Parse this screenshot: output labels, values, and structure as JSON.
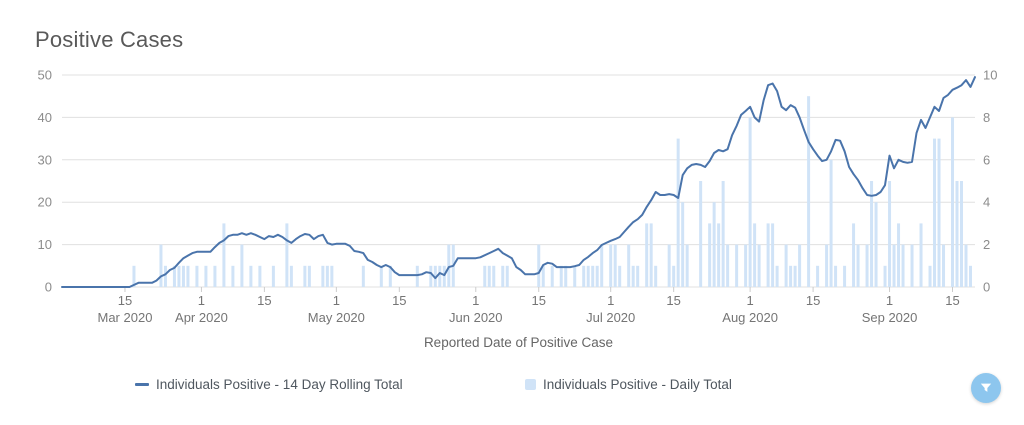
{
  "title": "Positive Cases",
  "chart_data": {
    "type": "combo",
    "title": "Positive Cases",
    "x_axis": {
      "title": "Reported Date of Positive Case",
      "day_zero": "2020-03-01",
      "day_max": 203,
      "ticks": [
        {
          "day": 14,
          "label": "15",
          "month": "Mar 2020"
        },
        {
          "day": 31,
          "label": "1",
          "month": "Apr 2020"
        },
        {
          "day": 45,
          "label": "15",
          "month": ""
        },
        {
          "day": 61,
          "label": "1",
          "month": "May 2020"
        },
        {
          "day": 75,
          "label": "15",
          "month": ""
        },
        {
          "day": 92,
          "label": "1",
          "month": "Jun 2020"
        },
        {
          "day": 106,
          "label": "15",
          "month": ""
        },
        {
          "day": 122,
          "label": "1",
          "month": "Jul 2020"
        },
        {
          "day": 136,
          "label": "15",
          "month": ""
        },
        {
          "day": 153,
          "label": "1",
          "month": "Aug 2020"
        },
        {
          "day": 167,
          "label": "15",
          "month": ""
        },
        {
          "day": 184,
          "label": "1",
          "month": "Sep 2020"
        },
        {
          "day": 198,
          "label": "15",
          "month": ""
        }
      ]
    },
    "y_left": {
      "range": [
        0,
        50
      ],
      "ticks": [
        0,
        10,
        20,
        30,
        40,
        50
      ]
    },
    "y_right": {
      "range": [
        0,
        10
      ],
      "ticks": [
        0,
        2,
        4,
        6,
        8,
        10
      ]
    },
    "grid": true,
    "legend_position": "bottom",
    "series": [
      {
        "name": "Individuals Positive - 14 Day Rolling Total",
        "type": "line",
        "axis": "left",
        "color": "#4a74ab",
        "points": [
          [
            0,
            0
          ],
          [
            15,
            0
          ],
          [
            16,
            0.5
          ],
          [
            17,
            1
          ],
          [
            20,
            1
          ],
          [
            21,
            1.5
          ],
          [
            22,
            2.5
          ],
          [
            23,
            3
          ],
          [
            24,
            4
          ],
          [
            25,
            4.5
          ],
          [
            26,
            5.7
          ],
          [
            27,
            6.8
          ],
          [
            28,
            7.4
          ],
          [
            29,
            8
          ],
          [
            30,
            8.3
          ],
          [
            33,
            8.3
          ],
          [
            34,
            9.4
          ],
          [
            35,
            10.4
          ],
          [
            36,
            11
          ],
          [
            37,
            12
          ],
          [
            38,
            12.3
          ],
          [
            39,
            12.3
          ],
          [
            40,
            12.7
          ],
          [
            41,
            12.3
          ],
          [
            42,
            12.7
          ],
          [
            43,
            12.3
          ],
          [
            44,
            11.8
          ],
          [
            45,
            11.3
          ],
          [
            46,
            12
          ],
          [
            47,
            11.8
          ],
          [
            48,
            12.3
          ],
          [
            49,
            11.8
          ],
          [
            50,
            11
          ],
          [
            51,
            10.4
          ],
          [
            52,
            11.3
          ],
          [
            53,
            12
          ],
          [
            54,
            12.5
          ],
          [
            55,
            12.3
          ],
          [
            56,
            11.3
          ],
          [
            57,
            12
          ],
          [
            58,
            12.3
          ],
          [
            59,
            10.4
          ],
          [
            60,
            10
          ],
          [
            61,
            10.2
          ],
          [
            63,
            10.2
          ],
          [
            64,
            9.7
          ],
          [
            65,
            8.5
          ],
          [
            66,
            8.3
          ],
          [
            67,
            8
          ],
          [
            68,
            6.4
          ],
          [
            69,
            5.9
          ],
          [
            70,
            5.2
          ],
          [
            71,
            4.7
          ],
          [
            72,
            5.2
          ],
          [
            73,
            4.7
          ],
          [
            74,
            3.5
          ],
          [
            75,
            2.8
          ],
          [
            79,
            2.8
          ],
          [
            80,
            3
          ],
          [
            81,
            3.5
          ],
          [
            82,
            3.3
          ],
          [
            83,
            2.1
          ],
          [
            84,
            3.3
          ],
          [
            85,
            2.8
          ],
          [
            86,
            4.7
          ],
          [
            87,
            5
          ],
          [
            88,
            6.8
          ],
          [
            92,
            6.8
          ],
          [
            93,
            7
          ],
          [
            95,
            8
          ],
          [
            96,
            8.5
          ],
          [
            97,
            9
          ],
          [
            98,
            8
          ],
          [
            99,
            7.4
          ],
          [
            100,
            6.8
          ],
          [
            101,
            4.7
          ],
          [
            102,
            4
          ],
          [
            103,
            3
          ],
          [
            105,
            3
          ],
          [
            106,
            3.3
          ],
          [
            107,
            5.2
          ],
          [
            108,
            5.7
          ],
          [
            109,
            5.5
          ],
          [
            110,
            4.7
          ],
          [
            113,
            4.7
          ],
          [
            114,
            4.9
          ],
          [
            115,
            5.2
          ],
          [
            116,
            6.4
          ],
          [
            117,
            7.1
          ],
          [
            118,
            8
          ],
          [
            119,
            8.7
          ],
          [
            120,
            9.9
          ],
          [
            121,
            10.4
          ],
          [
            122,
            10.9
          ],
          [
            123,
            11.3
          ],
          [
            124,
            11.8
          ],
          [
            125,
            13
          ],
          [
            126,
            14.2
          ],
          [
            127,
            15.3
          ],
          [
            128,
            16
          ],
          [
            129,
            17
          ],
          [
            130,
            18.9
          ],
          [
            131,
            20.5
          ],
          [
            132,
            22.4
          ],
          [
            133,
            21.7
          ],
          [
            134,
            21.7
          ],
          [
            135,
            21.9
          ],
          [
            136,
            21.7
          ],
          [
            137,
            21
          ],
          [
            138,
            26.4
          ],
          [
            139,
            28
          ],
          [
            140,
            28.8
          ],
          [
            141,
            29
          ],
          [
            142,
            28.8
          ],
          [
            143,
            28.3
          ],
          [
            144,
            29.7
          ],
          [
            145,
            31.6
          ],
          [
            146,
            32.3
          ],
          [
            147,
            32
          ],
          [
            148,
            32.5
          ],
          [
            149,
            35.8
          ],
          [
            150,
            38
          ],
          [
            151,
            40.6
          ],
          [
            152,
            41.5
          ],
          [
            153,
            42.5
          ],
          [
            154,
            40
          ],
          [
            155,
            39
          ],
          [
            156,
            44
          ],
          [
            157,
            47.6
          ],
          [
            158,
            48
          ],
          [
            159,
            46.2
          ],
          [
            160,
            42.5
          ],
          [
            161,
            41.7
          ],
          [
            162,
            42.9
          ],
          [
            163,
            42.3
          ],
          [
            164,
            40
          ],
          [
            165,
            37
          ],
          [
            166,
            34.2
          ],
          [
            167,
            32.5
          ],
          [
            168,
            31
          ],
          [
            169,
            29.7
          ],
          [
            170,
            30
          ],
          [
            171,
            32
          ],
          [
            172,
            34.7
          ],
          [
            173,
            34.5
          ],
          [
            174,
            32
          ],
          [
            175,
            28.3
          ],
          [
            176,
            26.6
          ],
          [
            177,
            25.2
          ],
          [
            178,
            23.3
          ],
          [
            179,
            21.7
          ],
          [
            180,
            21.5
          ],
          [
            181,
            21.7
          ],
          [
            182,
            22.4
          ],
          [
            183,
            24
          ],
          [
            184,
            31
          ],
          [
            185,
            28
          ],
          [
            186,
            30
          ],
          [
            187,
            29.5
          ],
          [
            188,
            29.3
          ],
          [
            189,
            29.5
          ],
          [
            190,
            36.3
          ],
          [
            191,
            39.4
          ],
          [
            192,
            37.5
          ],
          [
            193,
            40
          ],
          [
            194,
            42.5
          ],
          [
            195,
            41.5
          ],
          [
            196,
            44.6
          ],
          [
            197,
            45.3
          ],
          [
            198,
            46.5
          ],
          [
            199,
            47
          ],
          [
            200,
            47.6
          ],
          [
            201,
            48.8
          ],
          [
            202,
            47.2
          ],
          [
            203,
            49.5
          ]
        ]
      },
      {
        "name": "Individuals Positive - Daily Total",
        "type": "bar",
        "axis": "right",
        "color": "#d0e3f7",
        "points": [
          [
            16,
            1
          ],
          [
            22,
            2
          ],
          [
            23,
            1
          ],
          [
            25,
            1
          ],
          [
            26,
            1
          ],
          [
            27,
            1
          ],
          [
            28,
            1
          ],
          [
            30,
            1
          ],
          [
            32,
            1
          ],
          [
            34,
            1
          ],
          [
            36,
            3
          ],
          [
            38,
            1
          ],
          [
            40,
            2
          ],
          [
            42,
            1
          ],
          [
            44,
            1
          ],
          [
            47,
            1
          ],
          [
            50,
            3
          ],
          [
            51,
            1
          ],
          [
            54,
            1
          ],
          [
            55,
            1
          ],
          [
            58,
            1
          ],
          [
            59,
            1
          ],
          [
            60,
            1
          ],
          [
            67,
            1
          ],
          [
            71,
            1
          ],
          [
            73,
            1
          ],
          [
            79,
            1
          ],
          [
            82,
            1
          ],
          [
            83,
            1
          ],
          [
            84,
            1
          ],
          [
            85,
            1
          ],
          [
            86,
            2
          ],
          [
            87,
            2
          ],
          [
            94,
            1
          ],
          [
            95,
            1
          ],
          [
            96,
            1
          ],
          [
            98,
            1
          ],
          [
            99,
            1
          ],
          [
            106,
            2
          ],
          [
            107,
            1
          ],
          [
            109,
            1
          ],
          [
            111,
            1
          ],
          [
            112,
            1
          ],
          [
            114,
            1
          ],
          [
            116,
            1
          ],
          [
            117,
            1
          ],
          [
            118,
            1
          ],
          [
            119,
            1
          ],
          [
            120,
            2
          ],
          [
            122,
            2
          ],
          [
            123,
            2
          ],
          [
            124,
            1
          ],
          [
            126,
            2
          ],
          [
            127,
            1
          ],
          [
            128,
            1
          ],
          [
            130,
            3
          ],
          [
            131,
            3
          ],
          [
            132,
            1
          ],
          [
            135,
            2
          ],
          [
            136,
            1
          ],
          [
            137,
            7
          ],
          [
            138,
            4
          ],
          [
            139,
            2
          ],
          [
            142,
            5
          ],
          [
            144,
            3
          ],
          [
            145,
            4
          ],
          [
            146,
            3
          ],
          [
            147,
            5
          ],
          [
            148,
            2
          ],
          [
            150,
            2
          ],
          [
            152,
            2
          ],
          [
            153,
            8
          ],
          [
            154,
            3
          ],
          [
            155,
            2
          ],
          [
            157,
            3
          ],
          [
            158,
            3
          ],
          [
            159,
            1
          ],
          [
            161,
            2
          ],
          [
            162,
            1
          ],
          [
            163,
            1
          ],
          [
            164,
            2
          ],
          [
            166,
            9
          ],
          [
            168,
            1
          ],
          [
            170,
            2
          ],
          [
            171,
            6
          ],
          [
            172,
            1
          ],
          [
            174,
            1
          ],
          [
            176,
            3
          ],
          [
            177,
            2
          ],
          [
            179,
            2
          ],
          [
            180,
            5
          ],
          [
            181,
            4
          ],
          [
            183,
            1
          ],
          [
            184,
            5
          ],
          [
            185,
            2
          ],
          [
            186,
            3
          ],
          [
            187,
            2
          ],
          [
            189,
            2
          ],
          [
            191,
            3
          ],
          [
            193,
            1
          ],
          [
            194,
            7
          ],
          [
            195,
            7
          ],
          [
            196,
            2
          ],
          [
            198,
            8
          ],
          [
            199,
            5
          ],
          [
            200,
            5
          ],
          [
            201,
            2
          ],
          [
            202,
            1
          ]
        ]
      }
    ]
  },
  "legend": {
    "items": [
      {
        "label": "Individuals Positive - 14 Day Rolling Total",
        "swatch": "line"
      },
      {
        "label": "Individuals Positive - Daily Total",
        "swatch": "square"
      }
    ]
  },
  "controls": {
    "filter_button": {
      "icon": "filter-icon",
      "color": "#8dc6ee",
      "icon_color": "#ffffff"
    }
  },
  "colors": {
    "grid": "#e0e0e0",
    "axis_tick_mark": "#cccccc",
    "axis_label": "#8c8c8c",
    "x_tick_label": "#757575",
    "title": "#595959",
    "axis_title": "#666666",
    "legend_text": "#4f575f"
  }
}
